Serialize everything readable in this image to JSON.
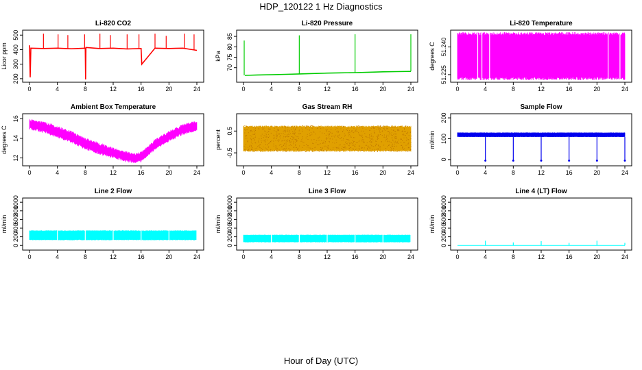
{
  "figure": {
    "title": "HDP_120122  1 Hz Diagnostics",
    "xlabel": "Hour of Day (UTC)"
  },
  "chart_data": [
    {
      "type": "line",
      "title": "Li-820 CO2",
      "ylabel": "Licor ppm",
      "color": "#ff0000",
      "xlim": [
        0,
        24
      ],
      "ylim": [
        190,
        520
      ],
      "xticks": [
        "0",
        "4",
        "8",
        "12",
        "16",
        "20",
        "24"
      ],
      "yticks": [
        "200",
        "300",
        "400",
        "500"
      ],
      "series": [
        {
          "x": [
            0,
            0.1,
            0.2,
            2,
            4,
            6,
            8,
            8.05,
            8.1,
            10,
            12,
            14,
            16,
            16.1,
            18,
            20,
            22,
            24
          ],
          "y": [
            430,
            210,
            410,
            408,
            410,
            406,
            410,
            195,
            415,
            408,
            410,
            405,
            408,
            300,
            410,
            408,
            410,
            395
          ]
        }
      ],
      "spikes": [
        {
          "x": 2.0,
          "y": 510
        },
        {
          "x": 4.1,
          "y": 505
        },
        {
          "x": 5.5,
          "y": 500
        },
        {
          "x": 7.9,
          "y": 505
        },
        {
          "x": 10.1,
          "y": 510
        },
        {
          "x": 11.6,
          "y": 500
        },
        {
          "x": 14.0,
          "y": 505
        },
        {
          "x": 15.7,
          "y": 505
        },
        {
          "x": 18.0,
          "y": 510
        },
        {
          "x": 19.6,
          "y": 495
        },
        {
          "x": 22.2,
          "y": 510
        },
        {
          "x": 23.6,
          "y": 505
        }
      ]
    },
    {
      "type": "line",
      "title": "Li-820 Pressure",
      "ylabel": "kPa",
      "color": "#00cc00",
      "xlim": [
        0,
        24
      ],
      "ylim": [
        64,
        87
      ],
      "xticks": [
        "0",
        "4",
        "8",
        "12",
        "16",
        "20",
        "24"
      ],
      "yticks": [
        "70",
        "75",
        "80",
        "85"
      ],
      "series": [
        {
          "x": [
            0.2,
            2,
            4,
            6,
            8,
            10,
            12,
            14,
            16,
            18,
            20,
            22,
            24
          ],
          "y": [
            66.3,
            66.5,
            66.6,
            66.8,
            67.0,
            67.2,
            67.4,
            67.5,
            67.6,
            67.8,
            68.0,
            68.1,
            68.2
          ]
        }
      ],
      "spikes": [
        {
          "x": 0.1,
          "y": 83
        },
        {
          "x": 8.0,
          "y": 85.5
        },
        {
          "x": 16.0,
          "y": 86
        },
        {
          "x": 24.0,
          "y": 86
        }
      ]
    },
    {
      "type": "area",
      "title": "Li-820 Temperature",
      "ylabel": "degrees C",
      "color": "#ff00ff",
      "xlim": [
        0,
        24
      ],
      "ylim": [
        51.222,
        51.248
      ],
      "xticks": [
        "0",
        "4",
        "8",
        "12",
        "16",
        "20",
        "24"
      ],
      "yticks": [
        "51.225",
        "51.240"
      ],
      "band": {
        "low": 51.222,
        "high": 51.248
      },
      "gaps": [
        2.9,
        3.5,
        4.6,
        21.6,
        23.3
      ]
    },
    {
      "type": "area",
      "title": "Ambient Box Temperature",
      "ylabel": "degrees C",
      "color": "#ff00ff",
      "xlim": [
        0,
        24
      ],
      "ylim": [
        11.4,
        16.3
      ],
      "xticks": [
        "0",
        "4",
        "8",
        "12",
        "16",
        "20",
        "24"
      ],
      "yticks": [
        "12",
        "14",
        "16"
      ],
      "series": [
        {
          "x": [
            0,
            2,
            4,
            6,
            8,
            10,
            12,
            14,
            15,
            16,
            17,
            18,
            20,
            22,
            23,
            24
          ],
          "low": [
            15.0,
            14.7,
            14.2,
            13.7,
            13.0,
            12.5,
            12.1,
            11.7,
            11.6,
            11.7,
            12.3,
            13.0,
            13.8,
            14.5,
            14.7,
            14.8
          ],
          "high": [
            15.8,
            15.6,
            15.1,
            14.6,
            13.9,
            13.4,
            12.9,
            12.5,
            12.3,
            12.5,
            13.1,
            13.8,
            14.6,
            15.3,
            15.5,
            15.6
          ]
        }
      ]
    },
    {
      "type": "area",
      "title": "Gas Stream RH",
      "ylabel": "percent",
      "color": "#e0a000",
      "xlim": [
        0,
        24
      ],
      "ylim": [
        -1.0,
        1.2
      ],
      "xticks": [
        "0",
        "4",
        "8",
        "12",
        "16",
        "20",
        "24"
      ],
      "yticks": [
        "-0.5",
        "0.5"
      ],
      "band": {
        "low": -0.45,
        "high": 0.75
      }
    },
    {
      "type": "line",
      "title": "Sample Flow",
      "ylabel": "ml/min",
      "color": "#0000ee",
      "xlim": [
        0,
        24
      ],
      "ylim": [
        -20,
        210
      ],
      "xticks": [
        "0",
        "4",
        "8",
        "12",
        "16",
        "20",
        "24"
      ],
      "yticks": [
        "0",
        "100",
        "200"
      ],
      "band": {
        "low": 108,
        "high": 130
      },
      "dips": [
        {
          "x": 4.0,
          "y": -5
        },
        {
          "x": 8.0,
          "y": -5
        },
        {
          "x": 12.0,
          "y": -5
        },
        {
          "x": 16.0,
          "y": -5
        },
        {
          "x": 20.0,
          "y": -5
        },
        {
          "x": 24.0,
          "y": -5
        }
      ]
    },
    {
      "type": "area",
      "title": "Line 2 Flow",
      "ylabel": "ml/min",
      "color": "#00ffff",
      "xlim": [
        0,
        24
      ],
      "ylim": [
        -60,
        1050
      ],
      "xticks": [
        "0",
        "4",
        "8",
        "12",
        "16",
        "20",
        "24"
      ],
      "yticks": [
        "0",
        "200",
        "400",
        "600",
        "800",
        "1000"
      ],
      "band": {
        "low": 120,
        "high": 350
      },
      "gaps": [
        4.0,
        8.0,
        12.0,
        16.0,
        20.0,
        24.0
      ]
    },
    {
      "type": "area",
      "title": "Line 3 Flow",
      "ylabel": "ml/min",
      "color": "#00ffff",
      "xlim": [
        0,
        24
      ],
      "ylim": [
        -60,
        1050
      ],
      "xticks": [
        "0",
        "4",
        "8",
        "12",
        "16",
        "20",
        "24"
      ],
      "yticks": [
        "0",
        "200",
        "400",
        "600",
        "800",
        "1000"
      ],
      "band": {
        "low": 70,
        "high": 250
      },
      "gaps": [
        4.0,
        8.0,
        12.0,
        16.0,
        20.0,
        24.0
      ]
    },
    {
      "type": "line",
      "title": "Line 4 (LT) Flow",
      "ylabel": "ml/min",
      "color": "#00ffff",
      "xlim": [
        0,
        24
      ],
      "ylim": [
        -60,
        1050
      ],
      "xticks": [
        "0",
        "4",
        "8",
        "12",
        "16",
        "20",
        "24"
      ],
      "yticks": [
        "0",
        "200",
        "400",
        "600",
        "800",
        "1000"
      ],
      "baseline": 0,
      "spikes": [
        {
          "x": 4.0,
          "y": 110
        },
        {
          "x": 8.0,
          "y": 70
        },
        {
          "x": 12.0,
          "y": 100
        },
        {
          "x": 16.0,
          "y": 60
        },
        {
          "x": 20.0,
          "y": 110
        },
        {
          "x": 24.0,
          "y": 60
        }
      ]
    }
  ]
}
